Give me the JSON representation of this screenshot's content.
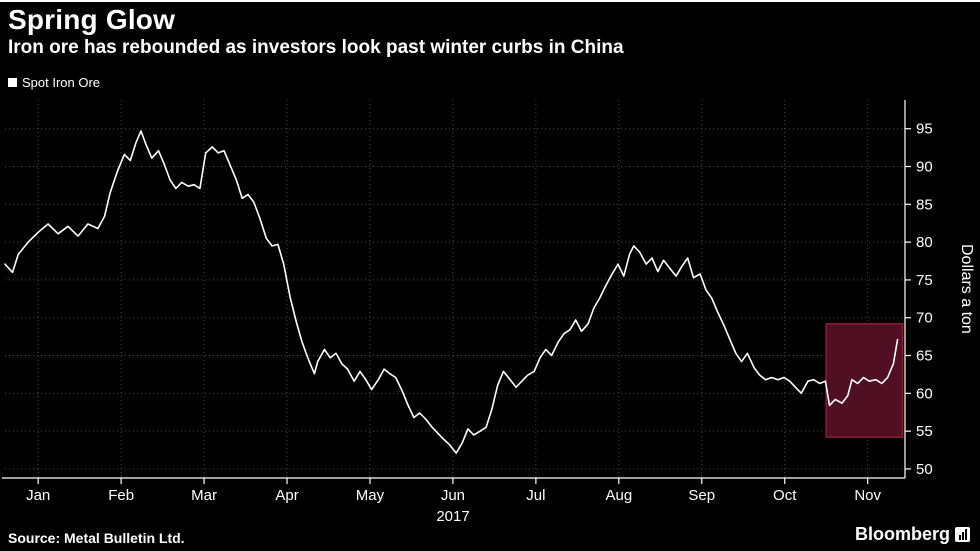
{
  "header": {
    "title": "Spring Glow",
    "subtitle": "Iron ore has rebounded as investors look past winter curbs in China"
  },
  "legend": {
    "label": "Spot Iron Ore",
    "swatch_color": "#ffffff"
  },
  "footer": {
    "source": "Source: Metal Bulletin Ltd.",
    "brand": "Bloomberg"
  },
  "colors": {
    "background": "#000000",
    "text": "#ffffff",
    "grid": "#4a4a4a",
    "axis": "#ffffff"
  },
  "chart_data": {
    "type": "line",
    "title": "Spring Glow",
    "subtitle": "Iron ore has rebounded as investors look past winter curbs in China",
    "ylabel": "Dollars a ton",
    "x_axis_year": "2017",
    "x_ticks": [
      "Jan",
      "Feb",
      "Mar",
      "Apr",
      "May",
      "Jun",
      "Jul",
      "Aug",
      "Sep",
      "Oct",
      "Nov"
    ],
    "x_tick_positions": [
      0,
      1,
      2,
      3,
      4,
      5,
      6,
      7,
      8,
      9,
      10
    ],
    "xlim": [
      -0.4,
      10.45
    ],
    "y_ticks": [
      50,
      55,
      60,
      65,
      70,
      75,
      80,
      85,
      90,
      95
    ],
    "ylim": [
      48.8,
      98.8
    ],
    "grid": "dotted",
    "legend_position": "top-left",
    "highlight_region": {
      "x": [
        9.5,
        10.42
      ],
      "y": [
        54.2,
        69.2
      ],
      "fill": "#500f22",
      "stroke": "#8a1c33"
    },
    "series": [
      {
        "name": "Spot Iron Ore",
        "color": "#ffffff",
        "unit": "Dollars a ton",
        "x": [
          -0.4,
          -0.31,
          -0.24,
          -0.12,
          0.0,
          0.12,
          0.24,
          0.36,
          0.48,
          0.6,
          0.72,
          0.8,
          0.87,
          0.96,
          1.04,
          1.11,
          1.18,
          1.24,
          1.3,
          1.37,
          1.45,
          1.52,
          1.59,
          1.66,
          1.73,
          1.81,
          1.88,
          1.95,
          2.02,
          2.1,
          2.17,
          2.24,
          2.31,
          2.39,
          2.46,
          2.53,
          2.6,
          2.67,
          2.75,
          2.82,
          2.89,
          2.96,
          3.04,
          3.11,
          3.18,
          3.25,
          3.33,
          3.37,
          3.45,
          3.52,
          3.59,
          3.66,
          3.73,
          3.81,
          3.88,
          3.95,
          4.02,
          4.1,
          4.17,
          4.24,
          4.31,
          4.39,
          4.46,
          4.53,
          4.6,
          4.67,
          4.75,
          4.82,
          4.89,
          4.96,
          5.04,
          5.11,
          5.18,
          5.25,
          5.33,
          5.4,
          5.47,
          5.54,
          5.61,
          5.69,
          5.76,
          5.83,
          5.9,
          5.98,
          6.05,
          6.12,
          6.19,
          6.27,
          6.34,
          6.41,
          6.48,
          6.55,
          6.63,
          6.7,
          6.77,
          6.84,
          6.92,
          6.99,
          7.06,
          7.13,
          7.18,
          7.25,
          7.33,
          7.4,
          7.47,
          7.54,
          7.61,
          7.69,
          7.76,
          7.83,
          7.9,
          7.98,
          8.05,
          8.12,
          8.19,
          8.27,
          8.34,
          8.41,
          8.48,
          8.55,
          8.63,
          8.7,
          8.77,
          8.84,
          8.92,
          8.99,
          9.06,
          9.13,
          9.2,
          9.28,
          9.35,
          9.42,
          9.49,
          9.54,
          9.61,
          9.69,
          9.76,
          9.81,
          9.88,
          9.95,
          10.02,
          10.1,
          10.17,
          10.24,
          10.31,
          10.36
        ],
        "y": [
          77.1,
          76.0,
          78.4,
          80.0,
          81.3,
          82.4,
          81.1,
          82.1,
          80.8,
          82.4,
          81.8,
          83.4,
          86.6,
          89.5,
          91.6,
          90.8,
          93.2,
          94.7,
          92.9,
          91.1,
          92.1,
          90.3,
          88.2,
          87.1,
          87.9,
          87.4,
          87.6,
          87.1,
          91.8,
          92.6,
          91.8,
          92.1,
          90.3,
          88.2,
          85.8,
          86.3,
          85.3,
          83.2,
          80.5,
          79.5,
          79.7,
          77.1,
          72.6,
          69.5,
          66.8,
          64.7,
          62.6,
          64.2,
          65.8,
          64.7,
          65.3,
          63.9,
          63.2,
          61.6,
          62.9,
          61.8,
          60.5,
          61.8,
          63.2,
          62.6,
          62.1,
          60.3,
          58.4,
          56.8,
          57.4,
          56.6,
          55.5,
          54.7,
          53.9,
          53.2,
          52.1,
          53.4,
          55.3,
          54.5,
          55.0,
          55.5,
          57.9,
          61.1,
          62.9,
          61.8,
          60.8,
          61.6,
          62.4,
          62.9,
          64.7,
          65.8,
          65.0,
          66.8,
          67.9,
          68.4,
          69.7,
          68.2,
          69.2,
          71.3,
          72.6,
          74.2,
          75.8,
          77.1,
          75.5,
          78.4,
          79.5,
          78.7,
          77.1,
          77.9,
          76.1,
          77.6,
          76.6,
          75.5,
          76.8,
          77.9,
          75.3,
          75.8,
          73.7,
          72.6,
          70.8,
          68.9,
          67.1,
          65.3,
          64.2,
          65.3,
          63.4,
          62.4,
          61.8,
          62.1,
          61.8,
          62.1,
          61.6,
          60.8,
          60.0,
          61.6,
          61.8,
          61.3,
          61.6,
          58.4,
          59.2,
          58.7,
          59.7,
          61.8,
          61.3,
          62.1,
          61.6,
          61.8,
          61.3,
          62.1,
          63.9,
          67.1
        ]
      }
    ]
  }
}
